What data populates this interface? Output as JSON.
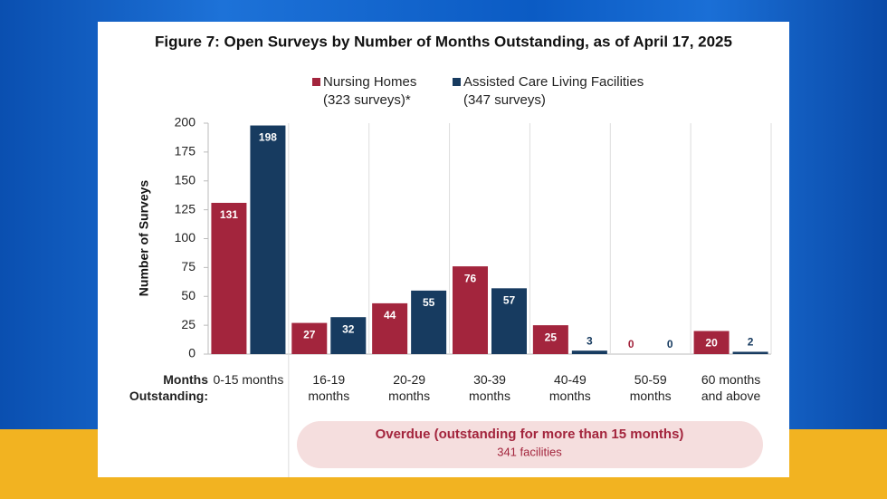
{
  "chart_data": {
    "type": "bar",
    "title": "Figure 7: Open Surveys by Number of Months Outstanding, as of April 17, 2025",
    "y_label": "Number of Surveys",
    "x_label": "Months Outstanding:",
    "categories": [
      "0-15 months",
      "16-19 months",
      "20-29 months",
      "30-39 months",
      "40-49 months",
      "50-59 months",
      "60 months and above"
    ],
    "series": [
      {
        "name": "Nursing Homes",
        "legend_note": "(323 surveys)*",
        "color": "#a3253d",
        "values": [
          131,
          27,
          44,
          76,
          25,
          0,
          20
        ]
      },
      {
        "name": "Assisted Care Living Facilities",
        "legend_note": "(347 surveys)",
        "color": "#173b60",
        "values": [
          198,
          32,
          55,
          57,
          3,
          0,
          2
        ]
      }
    ],
    "ylim": [
      0,
      200
    ],
    "yticks": [
      0,
      25,
      50,
      75,
      100,
      125,
      150,
      175,
      200
    ],
    "annotation": {
      "title": "Overdue (outstanding  for more than 15 months)",
      "subtitle": "341 facilities"
    }
  }
}
